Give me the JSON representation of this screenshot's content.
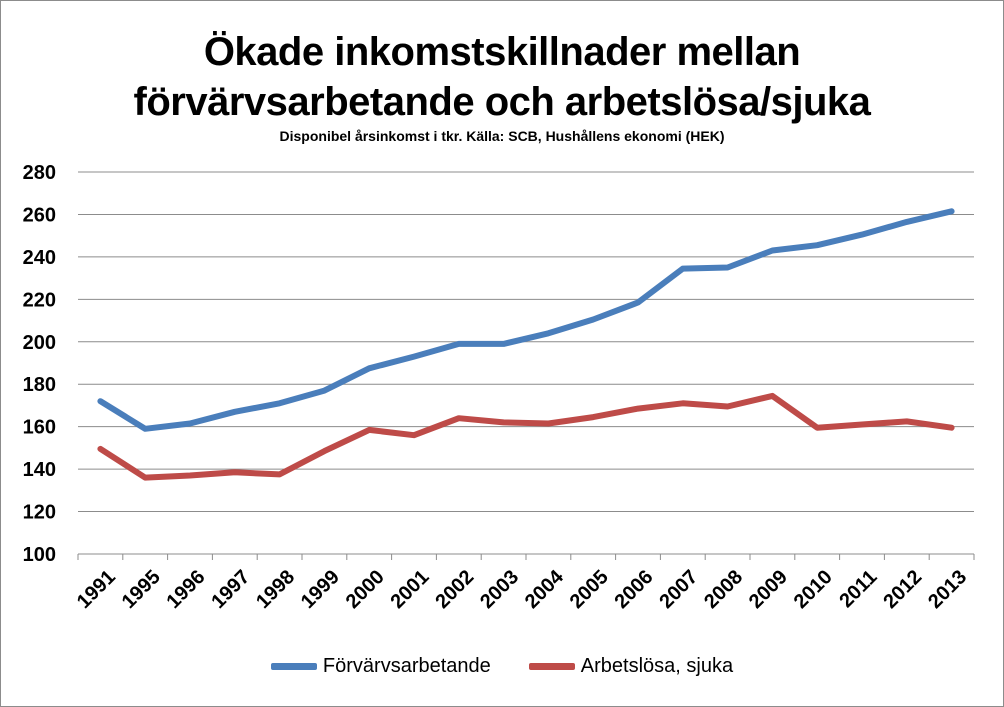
{
  "chart_data": {
    "type": "line",
    "title_line1": "Ökade inkomstskillnader mellan",
    "title_line2": "förvärvsarbetande och arbetslösa/sjuka",
    "subtitle": "Disponibel årsinkomst i tkr. Källa: SCB, Hushållens ekonomi (HEK)",
    "xlabel": "",
    "ylabel": "",
    "categories": [
      "1991",
      "1995",
      "1996",
      "1997",
      "1998",
      "1999",
      "2000",
      "2001",
      "2002",
      "2003",
      "2004",
      "2005",
      "2006",
      "2007",
      "2008",
      "2009",
      "2010",
      "2011",
      "2012",
      "2013"
    ],
    "ylim": [
      100,
      280
    ],
    "yticks": [
      100,
      120,
      140,
      160,
      180,
      200,
      220,
      240,
      260,
      280
    ],
    "grid": true,
    "legend_position": "bottom",
    "series": [
      {
        "name": "Förvärvsarbetande",
        "color": "#4a7ebb",
        "values": [
          172,
          159,
          161.5,
          167,
          171,
          177,
          187.5,
          193,
          199,
          199,
          204,
          210.5,
          218.5,
          234.5,
          235,
          243,
          245.5,
          250.5,
          256.5,
          261.5
        ]
      },
      {
        "name": "Arbetslösa, sjuka",
        "color": "#be4b48",
        "values": [
          149.5,
          136,
          137,
          138.5,
          137.5,
          148.5,
          158.5,
          156,
          164,
          162,
          161.5,
          164.5,
          168.5,
          171,
          169.5,
          174.5,
          159.5,
          161,
          162.5,
          159.5
        ]
      }
    ]
  }
}
